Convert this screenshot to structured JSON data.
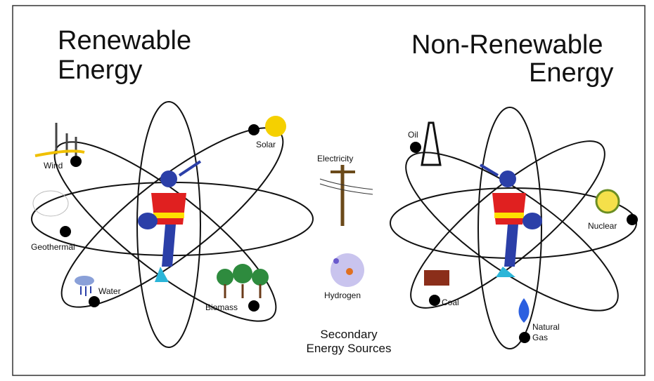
{
  "left": {
    "title": [
      "Renewable",
      "Energy"
    ],
    "items": [
      {
        "label": "Wind"
      },
      {
        "label": "Solar"
      },
      {
        "label": "Geothermal"
      },
      {
        "label": "Water"
      },
      {
        "label": "Biomass"
      }
    ]
  },
  "right": {
    "title": [
      "Non-Renewable",
      "Energy"
    ],
    "items": [
      {
        "label": "Oil"
      },
      {
        "label": "Nuclear"
      },
      {
        "label": "Coal"
      },
      {
        "label": [
          "Natural",
          "Gas"
        ]
      }
    ]
  },
  "center": {
    "items": [
      {
        "label": "Electricity"
      },
      {
        "label": "Hydrogen"
      }
    ],
    "caption": [
      "Secondary",
      "Energy Sources"
    ]
  }
}
